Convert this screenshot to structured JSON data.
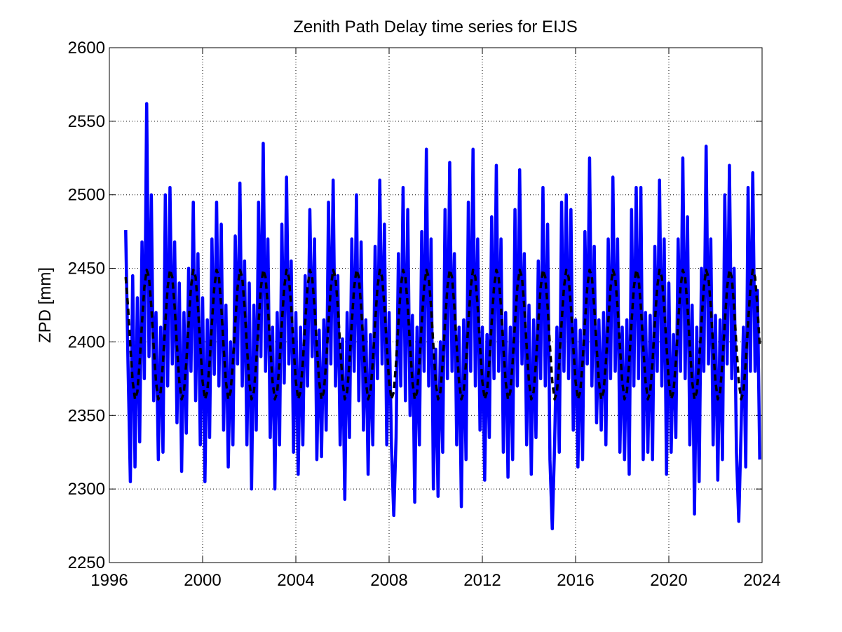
{
  "chart_data": {
    "type": "line",
    "title": "Zenith Path Delay time series for EIJS",
    "y_label": "ZPD [mm]",
    "xlim": [
      1996,
      2024
    ],
    "xticks": [
      1996,
      2000,
      2004,
      2008,
      2012,
      2016,
      2020,
      2024
    ],
    "ylim": [
      2250,
      2600
    ],
    "yticks": [
      2250,
      2300,
      2350,
      2400,
      2450,
      2500,
      2550,
      2600
    ],
    "grid": true,
    "series": [
      {
        "color": "#0000ff",
        "style": "solid",
        "x": [
          1996.7,
          1996.8,
          1996.9,
          1997,
          1997.1,
          1997.2,
          1997.3,
          1997.4,
          1997.5,
          1997.6,
          1997.7,
          1997.8,
          1997.9,
          1998,
          1998.1,
          1998.2,
          1998.3,
          1998.4,
          1998.5,
          1998.6,
          1998.7,
          1998.8,
          1998.9,
          1999,
          1999.1,
          1999.2,
          1999.3,
          1999.4,
          1999.5,
          1999.6,
          1999.7,
          1999.8,
          1999.9,
          2000,
          2000.1,
          2000.2,
          2000.3,
          2000.4,
          2000.5,
          2000.6,
          2000.7,
          2000.8,
          2000.9,
          2001,
          2001.1,
          2001.2,
          2001.3,
          2001.4,
          2001.5,
          2001.6,
          2001.7,
          2001.8,
          2001.9,
          2002,
          2002.1,
          2002.2,
          2002.3,
          2002.4,
          2002.5,
          2002.6,
          2002.7,
          2002.8,
          2002.9,
          2003,
          2003.1,
          2003.2,
          2003.3,
          2003.4,
          2003.5,
          2003.6,
          2003.7,
          2003.8,
          2003.9,
          2004,
          2004.1,
          2004.2,
          2004.3,
          2004.4,
          2004.5,
          2004.6,
          2004.7,
          2004.8,
          2004.9,
          2005,
          2005.1,
          2005.2,
          2005.3,
          2005.4,
          2005.5,
          2005.6,
          2005.7,
          2005.8,
          2005.9,
          2006,
          2006.1,
          2006.2,
          2006.3,
          2006.4,
          2006.5,
          2006.6,
          2006.7,
          2006.8,
          2006.9,
          2007,
          2007.1,
          2007.2,
          2007.3,
          2007.4,
          2007.5,
          2007.6,
          2007.7,
          2007.8,
          2007.9,
          2008,
          2008.1,
          2008.2,
          2008.3,
          2008.4,
          2008.5,
          2008.6,
          2008.7,
          2008.8,
          2008.9,
          2009,
          2009.1,
          2009.2,
          2009.3,
          2009.4,
          2009.5,
          2009.6,
          2009.7,
          2009.8,
          2009.9,
          2010,
          2010.1,
          2010.2,
          2010.3,
          2010.4,
          2010.5,
          2010.6,
          2010.7,
          2010.8,
          2010.9,
          2011,
          2011.1,
          2011.2,
          2011.3,
          2011.4,
          2011.5,
          2011.6,
          2011.7,
          2011.8,
          2011.9,
          2012,
          2012.1,
          2012.2,
          2012.3,
          2012.4,
          2012.5,
          2012.6,
          2012.7,
          2012.8,
          2012.9,
          2013,
          2013.1,
          2013.2,
          2013.3,
          2013.4,
          2013.5,
          2013.6,
          2013.7,
          2013.8,
          2013.9,
          2014,
          2014.1,
          2014.2,
          2014.3,
          2014.4,
          2014.5,
          2014.6,
          2014.7,
          2014.8,
          2014.9,
          2015,
          2015.1,
          2015.2,
          2015.3,
          2015.4,
          2015.5,
          2015.6,
          2015.7,
          2015.8,
          2015.9,
          2016,
          2016.1,
          2016.2,
          2016.3,
          2016.4,
          2016.5,
          2016.6,
          2016.7,
          2016.8,
          2016.9,
          2017,
          2017.1,
          2017.2,
          2017.3,
          2017.4,
          2017.5,
          2017.6,
          2017.7,
          2017.8,
          2017.9,
          2018,
          2018.1,
          2018.2,
          2018.3,
          2018.4,
          2018.5,
          2018.6,
          2018.7,
          2018.8,
          2018.9,
          2019,
          2019.1,
          2019.2,
          2019.3,
          2019.4,
          2019.5,
          2019.6,
          2019.7,
          2019.8,
          2019.9,
          2020,
          2020.1,
          2020.2,
          2020.3,
          2020.4,
          2020.5,
          2020.6,
          2020.7,
          2020.8,
          2020.9,
          2021,
          2021.1,
          2021.2,
          2021.3,
          2021.4,
          2021.5,
          2021.6,
          2021.7,
          2021.8,
          2021.9,
          2022,
          2022.1,
          2022.2,
          2022.3,
          2022.4,
          2022.5,
          2022.6,
          2022.7,
          2022.8,
          2022.9,
          2023,
          2023.1,
          2023.2,
          2023.3,
          2023.4,
          2023.5,
          2023.6,
          2023.7,
          2023.8,
          2023.9
        ],
        "values": [
          2476,
          2385,
          2305,
          2445,
          2315,
          2430,
          2332,
          2468,
          2375,
          2562,
          2390,
          2500,
          2360,
          2420,
          2320,
          2410,
          2325,
          2500,
          2370,
          2505,
          2385,
          2468,
          2345,
          2440,
          2312,
          2420,
          2338,
          2450,
          2380,
          2495,
          2360,
          2460,
          2330,
          2430,
          2305,
          2415,
          2335,
          2470,
          2378,
          2495,
          2370,
          2480,
          2340,
          2425,
          2315,
          2400,
          2330,
          2472,
          2385,
          2508,
          2370,
          2455,
          2330,
          2440,
          2300,
          2425,
          2340,
          2495,
          2390,
          2535,
          2380,
          2470,
          2335,
          2410,
          2300,
          2420,
          2330,
          2480,
          2372,
          2512,
          2385,
          2455,
          2325,
          2420,
          2310,
          2410,
          2330,
          2445,
          2370,
          2490,
          2390,
          2470,
          2320,
          2408,
          2322,
          2415,
          2340,
          2495,
          2385,
          2510,
          2370,
          2445,
          2330,
          2402,
          2293,
          2420,
          2335,
          2470,
          2380,
          2500,
          2360,
          2468,
          2340,
          2415,
          2310,
          2405,
          2330,
          2465,
          2375,
          2510,
          2385,
          2480,
          2330,
          2420,
          2330,
          2282,
          2335,
          2460,
          2370,
          2505,
          2360,
          2490,
          2350,
          2418,
          2291,
          2410,
          2330,
          2475,
          2380,
          2531,
          2370,
          2470,
          2300,
          2395,
          2295,
          2400,
          2325,
          2490,
          2375,
          2522,
          2380,
          2460,
          2330,
          2410,
          2288,
          2415,
          2320,
          2495,
          2380,
          2531,
          2370,
          2470,
          2340,
          2410,
          2306,
          2405,
          2335,
          2485,
          2375,
          2520,
          2380,
          2470,
          2325,
          2420,
          2308,
          2410,
          2320,
          2490,
          2370,
          2517,
          2385,
          2460,
          2330,
          2425,
          2310,
          2415,
          2335,
          2455,
          2375,
          2505,
          2370,
          2480,
          2320,
          2273,
          2330,
          2410,
          2325,
          2495,
          2380,
          2500,
          2375,
          2490,
          2340,
          2415,
          2315,
          2408,
          2320,
          2475,
          2385,
          2525,
          2370,
          2465,
          2345,
          2415,
          2340,
          2420,
          2330,
          2470,
          2375,
          2512,
          2380,
          2470,
          2325,
          2410,
          2320,
          2415,
          2310,
          2490,
          2370,
          2505,
          2375,
          2505,
          2320,
          2420,
          2325,
          2418,
          2320,
          2465,
          2380,
          2510,
          2370,
          2470,
          2310,
          2440,
          2325,
          2405,
          2335,
          2470,
          2380,
          2525,
          2375,
          2485,
          2330,
          2425,
          2283,
          2410,
          2305,
          2450,
          2380,
          2533,
          2385,
          2470,
          2330,
          2418,
          2306,
          2415,
          2320,
          2500,
          2385,
          2520,
          2375,
          2450,
          2325,
          2278,
          2340,
          2410,
          2315,
          2505,
          2380,
          2515,
          2380,
          2435,
          2320
        ]
      },
      {
        "color": "#000000",
        "style": "dashed",
        "x": [
          1996.7,
          1996.8,
          1996.9,
          1997,
          1997.1,
          1997.2,
          1997.3,
          1997.4,
          1997.5,
          1997.6,
          1997.7,
          1997.8,
          1997.9,
          1998,
          1998.1,
          1998.2,
          1998.3,
          1998.4,
          1998.5,
          1998.6,
          1998.7,
          1998.8,
          1998.9,
          1999,
          1999.1,
          1999.2,
          1999.3,
          1999.4,
          1999.5,
          1999.6,
          1999.7,
          1999.8,
          1999.9,
          2000,
          2000.1,
          2000.2,
          2000.3,
          2000.4,
          2000.5,
          2000.6,
          2000.7,
          2000.8,
          2000.9,
          2001,
          2001.1,
          2001.2,
          2001.3,
          2001.4,
          2001.5,
          2001.6,
          2001.7,
          2001.8,
          2001.9,
          2002,
          2002.1,
          2002.2,
          2002.3,
          2002.4,
          2002.5,
          2002.6,
          2002.7,
          2002.8,
          2002.9,
          2003,
          2003.1,
          2003.2,
          2003.3,
          2003.4,
          2003.5,
          2003.6,
          2003.7,
          2003.8,
          2003.9,
          2004,
          2004.1,
          2004.2,
          2004.3,
          2004.4,
          2004.5,
          2004.6,
          2004.7,
          2004.8,
          2004.9,
          2005,
          2005.1,
          2005.2,
          2005.3,
          2005.4,
          2005.5,
          2005.6,
          2005.7,
          2005.8,
          2005.9,
          2006,
          2006.1,
          2006.2,
          2006.3,
          2006.4,
          2006.5,
          2006.6,
          2006.7,
          2006.8,
          2006.9,
          2007,
          2007.1,
          2007.2,
          2007.3,
          2007.4,
          2007.5,
          2007.6,
          2007.7,
          2007.8,
          2007.9,
          2008,
          2008.1,
          2008.2,
          2008.3,
          2008.4,
          2008.5,
          2008.6,
          2008.7,
          2008.8,
          2008.9,
          2009,
          2009.1,
          2009.2,
          2009.3,
          2009.4,
          2009.5,
          2009.6,
          2009.7,
          2009.8,
          2009.9,
          2010,
          2010.1,
          2010.2,
          2010.3,
          2010.4,
          2010.5,
          2010.6,
          2010.7,
          2010.8,
          2010.9,
          2011,
          2011.1,
          2011.2,
          2011.3,
          2011.4,
          2011.5,
          2011.6,
          2011.7,
          2011.8,
          2011.9,
          2012,
          2012.1,
          2012.2,
          2012.3,
          2012.4,
          2012.5,
          2012.6,
          2012.7,
          2012.8,
          2012.9,
          2013,
          2013.1,
          2013.2,
          2013.3,
          2013.4,
          2013.5,
          2013.6,
          2013.7,
          2013.8,
          2013.9,
          2014,
          2014.1,
          2014.2,
          2014.3,
          2014.4,
          2014.5,
          2014.6,
          2014.7,
          2014.8,
          2014.9,
          2015,
          2015.1,
          2015.2,
          2015.3,
          2015.4,
          2015.5,
          2015.6,
          2015.7,
          2015.8,
          2015.9,
          2016,
          2016.1,
          2016.2,
          2016.3,
          2016.4,
          2016.5,
          2016.6,
          2016.7,
          2016.8,
          2016.9,
          2017,
          2017.1,
          2017.2,
          2017.3,
          2017.4,
          2017.5,
          2017.6,
          2017.7,
          2017.8,
          2017.9,
          2018,
          2018.1,
          2018.2,
          2018.3,
          2018.4,
          2018.5,
          2018.6,
          2018.7,
          2018.8,
          2018.9,
          2019,
          2019.1,
          2019.2,
          2019.3,
          2019.4,
          2019.5,
          2019.6,
          2019.7,
          2019.8,
          2019.9,
          2020,
          2020.1,
          2020.2,
          2020.3,
          2020.4,
          2020.5,
          2020.6,
          2020.7,
          2020.8,
          2020.9,
          2021,
          2021.1,
          2021.2,
          2021.3,
          2021.4,
          2021.5,
          2021.6,
          2021.7,
          2021.8,
          2021.9,
          2022,
          2022.1,
          2022.2,
          2022.3,
          2022.4,
          2022.5,
          2022.6,
          2022.7,
          2022.8,
          2022.9,
          2023,
          2023.1,
          2023.2,
          2023.3,
          2023.4,
          2023.5,
          2023.6,
          2023.7,
          2023.8,
          2023.9
        ],
        "values": [
          2444,
          2424,
          2397,
          2373,
          2361,
          2366,
          2386,
          2413,
          2437,
          2449,
          2444,
          2424,
          2397,
          2373,
          2361,
          2366,
          2386,
          2413,
          2437,
          2449,
          2444,
          2424,
          2397,
          2373,
          2361,
          2366,
          2386,
          2413,
          2437,
          2449,
          2444,
          2424,
          2397,
          2373,
          2361,
          2366,
          2386,
          2413,
          2437,
          2449,
          2444,
          2424,
          2397,
          2373,
          2361,
          2366,
          2386,
          2413,
          2437,
          2449,
          2444,
          2424,
          2397,
          2373,
          2361,
          2366,
          2386,
          2413,
          2437,
          2449,
          2444,
          2424,
          2397,
          2373,
          2361,
          2366,
          2386,
          2413,
          2437,
          2449,
          2444,
          2424,
          2397,
          2373,
          2361,
          2366,
          2386,
          2413,
          2437,
          2449,
          2444,
          2424,
          2397,
          2373,
          2361,
          2366,
          2386,
          2413,
          2437,
          2449,
          2444,
          2424,
          2397,
          2373,
          2361,
          2366,
          2386,
          2413,
          2437,
          2449,
          2444,
          2424,
          2397,
          2373,
          2361,
          2366,
          2386,
          2413,
          2437,
          2449,
          2444,
          2424,
          2397,
          2373,
          2361,
          2366,
          2386,
          2413,
          2437,
          2449,
          2444,
          2424,
          2397,
          2373,
          2361,
          2366,
          2386,
          2413,
          2437,
          2449,
          2444,
          2424,
          2397,
          2373,
          2361,
          2366,
          2386,
          2413,
          2437,
          2449,
          2444,
          2424,
          2397,
          2373,
          2361,
          2366,
          2386,
          2413,
          2437,
          2449,
          2444,
          2424,
          2397,
          2373,
          2361,
          2366,
          2386,
          2413,
          2437,
          2449,
          2444,
          2424,
          2397,
          2373,
          2361,
          2366,
          2386,
          2413,
          2437,
          2449,
          2444,
          2424,
          2397,
          2373,
          2361,
          2366,
          2386,
          2413,
          2437,
          2449,
          2444,
          2424,
          2397,
          2373,
          2361,
          2366,
          2386,
          2413,
          2437,
          2449,
          2444,
          2424,
          2397,
          2373,
          2361,
          2366,
          2386,
          2413,
          2437,
          2449,
          2444,
          2424,
          2397,
          2373,
          2361,
          2366,
          2386,
          2413,
          2437,
          2449,
          2444,
          2424,
          2397,
          2373,
          2361,
          2366,
          2386,
          2413,
          2437,
          2449,
          2444,
          2424,
          2397,
          2373,
          2361,
          2366,
          2386,
          2413,
          2437,
          2449,
          2444,
          2424,
          2397,
          2373,
          2361,
          2366,
          2386,
          2413,
          2437,
          2449,
          2444,
          2424,
          2397,
          2373,
          2361,
          2366,
          2386,
          2413,
          2437,
          2449,
          2444,
          2424,
          2397,
          2373,
          2361,
          2366,
          2386,
          2413,
          2437,
          2449,
          2444,
          2424,
          2397,
          2373,
          2361,
          2366,
          2386,
          2413,
          2437,
          2449,
          2444,
          2424,
          2397
        ]
      }
    ]
  }
}
